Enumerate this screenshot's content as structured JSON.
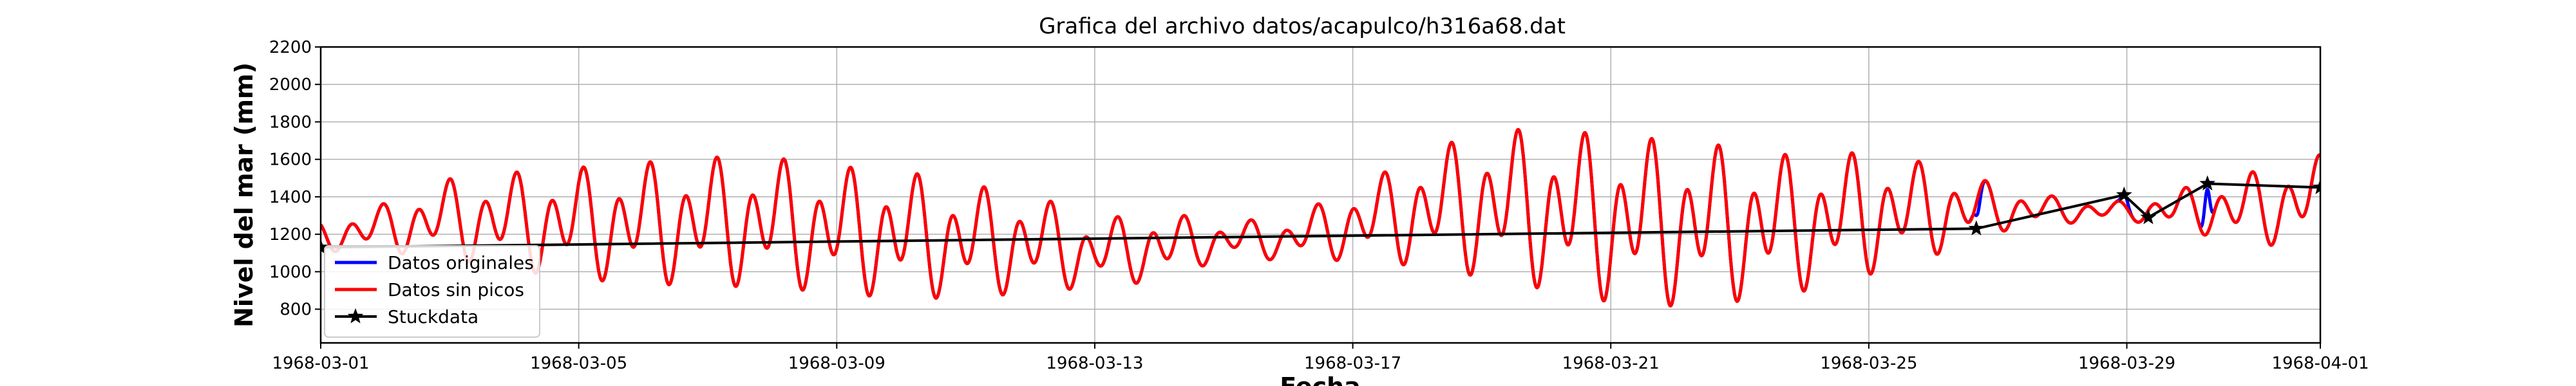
{
  "chart_data": {
    "type": "line",
    "title": "Grafica del archivo datos/acapulco/h316a68.dat",
    "xlabel": "Fecha",
    "ylabel": "Nivel del mar (mm)",
    "xlim": [
      "1968-03-01",
      "1968-04-01"
    ],
    "ylim": [
      620,
      2200
    ],
    "x_ticks": [
      "1968-03-01",
      "1968-03-05",
      "1968-03-09",
      "1968-03-13",
      "1968-03-17",
      "1968-03-21",
      "1968-03-25",
      "1968-03-29",
      "1968-04-01"
    ],
    "y_ticks": [
      800,
      1000,
      1200,
      1400,
      1600,
      1800,
      2000,
      2200
    ],
    "grid": true,
    "legend_position": "bottom-left",
    "colors": {
      "original": "#0000ff",
      "sin_picos": "#ff0000",
      "stuck": "#000000"
    },
    "tide_daily": [
      {
        "d": "1968-03-01",
        "hi": 1280,
        "lo": 1100
      },
      {
        "d": "1968-03-02",
        "hi": 1380,
        "lo": 1090
      },
      {
        "d": "1968-03-03",
        "hi": 1520,
        "lo": 1050
      },
      {
        "d": "1968-03-04",
        "hi": 1560,
        "lo": 980
      },
      {
        "d": "1968-03-05",
        "hi": 1590,
        "lo": 930
      },
      {
        "d": "1968-03-06",
        "hi": 1620,
        "lo": 900
      },
      {
        "d": "1968-03-07",
        "hi": 1650,
        "lo": 890
      },
      {
        "d": "1968-03-08",
        "hi": 1650,
        "lo": 880
      },
      {
        "d": "1968-03-09",
        "hi": 1600,
        "lo": 850
      },
      {
        "d": "1968-03-10",
        "hi": 1580,
        "lo": 820
      },
      {
        "d": "1968-03-11",
        "hi": 1500,
        "lo": 830
      },
      {
        "d": "1968-03-12",
        "hi": 1450,
        "lo": 860
      },
      {
        "d": "1968-03-13",
        "hi": 1300,
        "lo": 900
      },
      {
        "d": "1968-03-14",
        "hi": 1340,
        "lo": 930
      },
      {
        "d": "1968-03-15",
        "hi": 1280,
        "lo": 1060
      },
      {
        "d": "1968-03-16",
        "hi": 1300,
        "lo": 1050
      },
      {
        "d": "1968-03-17",
        "hi": 1470,
        "lo": 1040
      },
      {
        "d": "1968-03-18",
        "hi": 1650,
        "lo": 1000
      },
      {
        "d": "1968-03-19",
        "hi": 1800,
        "lo": 930
      },
      {
        "d": "1968-03-20",
        "hi": 1810,
        "lo": 860
      },
      {
        "d": "1968-03-21",
        "hi": 1780,
        "lo": 790
      },
      {
        "d": "1968-03-22",
        "hi": 1750,
        "lo": 770
      },
      {
        "d": "1968-03-23",
        "hi": 1710,
        "lo": 800
      },
      {
        "d": "1968-03-24",
        "hi": 1650,
        "lo": 860
      },
      {
        "d": "1968-03-25",
        "hi": 1680,
        "lo": 950
      },
      {
        "d": "1968-03-26",
        "hi": 1600,
        "lo": 1060
      },
      {
        "d": "1968-03-27",
        "hi": 1480,
        "lo": 1200
      },
      {
        "d": "1968-03-28",
        "hi": 1400,
        "lo": 1250
      },
      {
        "d": "1968-03-29",
        "hi": 1380,
        "lo": 1270
      },
      {
        "d": "1968-03-30",
        "hi": 1470,
        "lo": 1200
      },
      {
        "d": "1968-03-31",
        "hi": 1560,
        "lo": 1110
      },
      {
        "d": "1968-04-01",
        "hi": 1650,
        "lo": 1150
      }
    ],
    "series": [
      {
        "name": "Datos originales",
        "color": "#0000ff",
        "note_deviations": [
          {
            "x": "1968-03-26T16:00",
            "y": 1300
          },
          {
            "x": "1968-03-28T23:00",
            "y": 1410
          },
          {
            "x": "1968-03-30T06:00",
            "y": 1440
          }
        ]
      },
      {
        "name": "Datos sin picos",
        "color": "#ff0000"
      },
      {
        "name": "Stuckdata",
        "color": "#000000",
        "marker": "star",
        "points": [
          {
            "x": "1968-03-01T00:00",
            "y": 1130
          },
          {
            "x": "1968-03-26T16:00",
            "y": 1230
          },
          {
            "x": "1968-03-28T23:00",
            "y": 1410
          },
          {
            "x": "1968-03-29T08:00",
            "y": 1290
          },
          {
            "x": "1968-03-30T06:00",
            "y": 1470
          },
          {
            "x": "1968-04-01T00:00",
            "y": 1450
          }
        ]
      }
    ]
  }
}
